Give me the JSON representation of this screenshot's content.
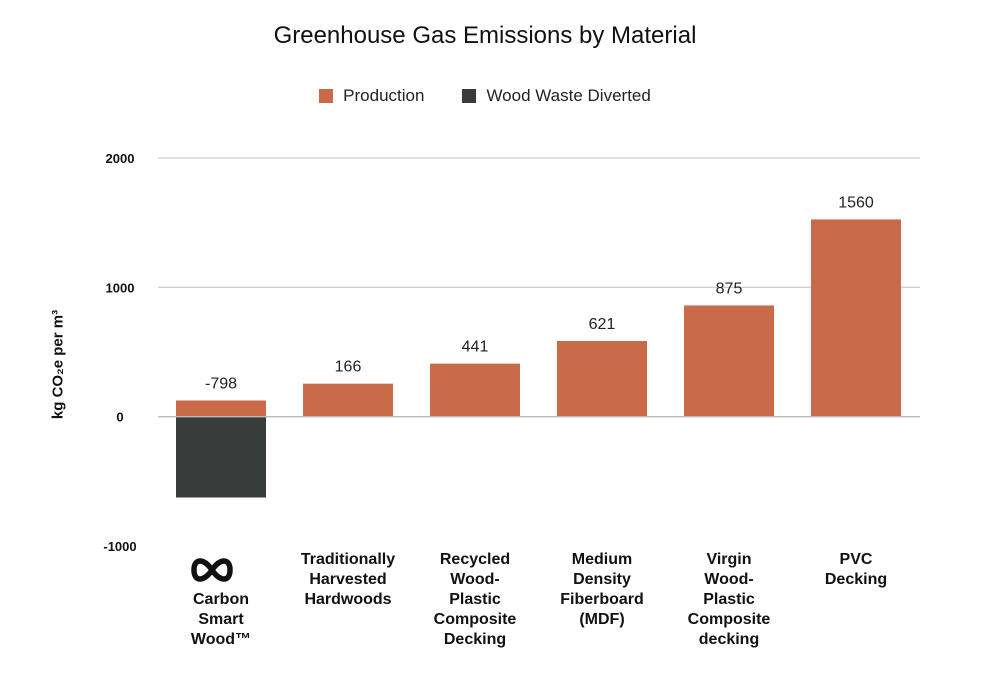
{
  "chart_data": {
    "type": "bar",
    "title": "Greenhouse Gas Emissions by Material",
    "ylabel": "kg CO₂e per m³",
    "xlabel": "",
    "ylim": [
      -1000,
      2000
    ],
    "yticks": [
      "2000",
      "1000",
      "0",
      "-1000"
    ],
    "ytick_values": [
      2000,
      1000,
      0,
      -1000
    ],
    "grid": true,
    "legend_position": "top-center",
    "categories": [
      "Carbon Smart Wood™",
      "Traditionally Harvested Hardwoods",
      "Recycled Wood-Plastic Composite Decking",
      "Medium Density Fiberboard (MDF)",
      "Virgin Wood-Plastic Composite decking",
      "PVC Decking"
    ],
    "category_lines": [
      [
        "Carbon",
        "Smart",
        "Wood™"
      ],
      [
        "Traditionally",
        "Harvested",
        "Hardwoods"
      ],
      [
        "Recycled",
        "Wood-",
        "Plastic",
        "Composite",
        "Decking"
      ],
      [
        "Medium",
        "Density",
        "Fiberboard",
        "(MDF)"
      ],
      [
        "Virgin",
        "Wood-",
        "Plastic",
        "Composite",
        "decking"
      ],
      [
        "PVC",
        "Decking"
      ]
    ],
    "series": [
      {
        "name": "Production",
        "color": "#c96a48",
        "values": [
          125,
          255,
          410,
          585,
          860,
          1525
        ]
      },
      {
        "name": "Wood Waste Diverted",
        "color": "#383d3b",
        "values": [
          -625,
          0,
          0,
          0,
          0,
          0
        ]
      }
    ],
    "data_labels": [
      "-798",
      "166",
      "441",
      "621",
      "875",
      "1560"
    ]
  },
  "logo_icon": "infinity-logo-icon"
}
